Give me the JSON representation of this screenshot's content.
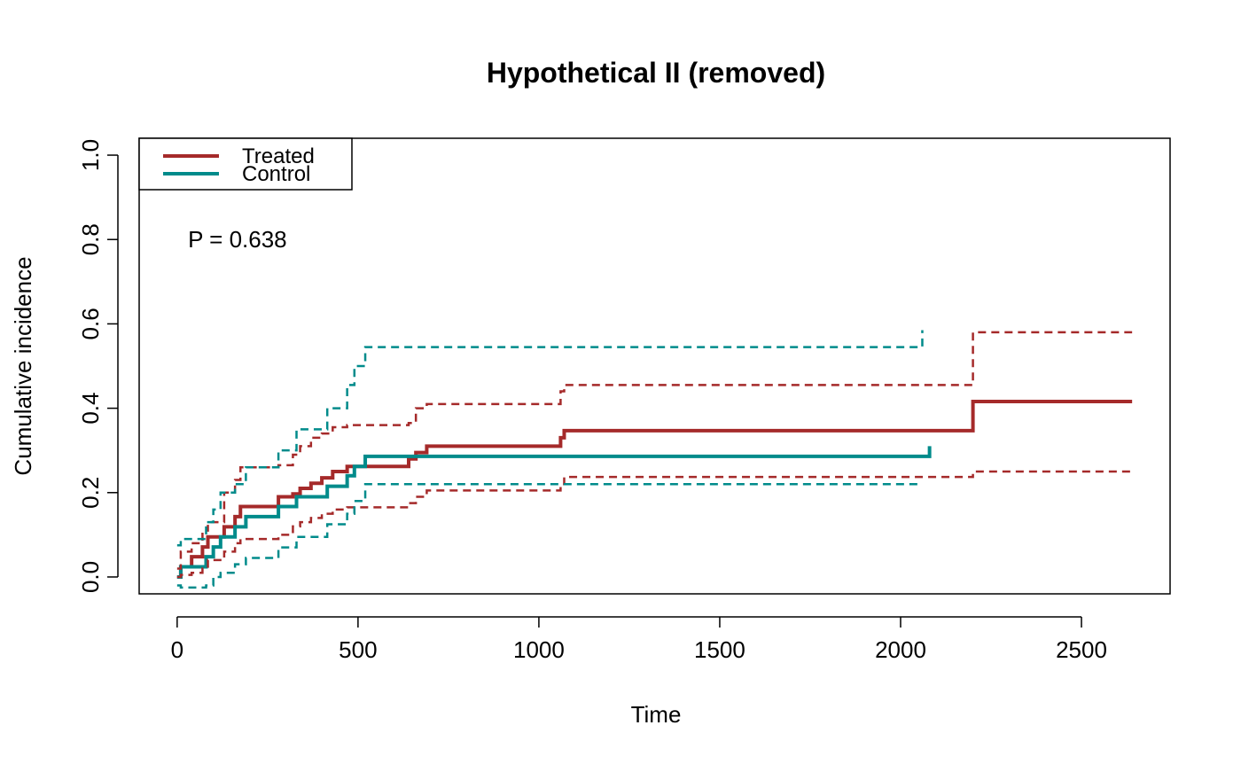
{
  "chart_data": {
    "type": "line",
    "title": "Hypothetical II (removed)",
    "xlabel": "Time",
    "ylabel": "Cumulative incidence",
    "xlim": [
      -105,
      2745
    ],
    "ylim": [
      -0.04,
      1.04
    ],
    "xticks": [
      0,
      500,
      1000,
      1500,
      2000,
      2500
    ],
    "xtick_labels": [
      "0",
      "500",
      "1000",
      "1500",
      "2000",
      "2500"
    ],
    "yticks": [
      0.0,
      0.2,
      0.4,
      0.6,
      0.8,
      1.0
    ],
    "ytick_labels": [
      "0.0",
      "0.2",
      "0.4",
      "0.6",
      "0.8",
      "1.0"
    ],
    "legend": {
      "position": "top-left",
      "entries": [
        {
          "label": "Treated",
          "color": "#A52A2A"
        },
        {
          "label": "Control",
          "color": "#008B8B"
        }
      ]
    },
    "annotation": {
      "text": "P = 0.638",
      "x": 30,
      "y": 0.8
    },
    "series": [
      {
        "name": "Treated",
        "color": "#A52A2A",
        "style": "solid",
        "role": "estimate",
        "x": [
          0,
          10,
          40,
          70,
          85,
          130,
          160,
          175,
          280,
          320,
          340,
          370,
          400,
          430,
          470,
          640,
          660,
          690,
          1060,
          1070,
          2200,
          2640
        ],
        "y": [
          0,
          0.024,
          0.048,
          0.071,
          0.095,
          0.119,
          0.143,
          0.167,
          0.19,
          0.197,
          0.21,
          0.222,
          0.235,
          0.25,
          0.262,
          0.28,
          0.295,
          0.31,
          0.33,
          0.347,
          0.416,
          0.416
        ]
      },
      {
        "name": "Control",
        "color": "#008B8B",
        "style": "solid",
        "role": "estimate",
        "x": [
          0,
          10,
          80,
          100,
          120,
          160,
          190,
          280,
          330,
          415,
          470,
          490,
          520,
          2080
        ],
        "y": [
          0,
          0.024,
          0.048,
          0.071,
          0.095,
          0.119,
          0.143,
          0.167,
          0.19,
          0.215,
          0.24,
          0.262,
          0.286,
          0.31
        ]
      },
      {
        "name": "Treated upper CI",
        "color": "#A52A2A",
        "style": "dashed",
        "role": "ci",
        "x": [
          0,
          10,
          40,
          70,
          85,
          130,
          160,
          175,
          280,
          320,
          340,
          370,
          400,
          430,
          470,
          640,
          660,
          690,
          1060,
          1070,
          2200,
          2640
        ],
        "y": [
          0.02,
          0.06,
          0.08,
          0.11,
          0.13,
          0.2,
          0.23,
          0.26,
          0.265,
          0.29,
          0.31,
          0.33,
          0.34,
          0.355,
          0.36,
          0.365,
          0.4,
          0.41,
          0.44,
          0.455,
          0.58,
          0.58
        ]
      },
      {
        "name": "Treated lower CI",
        "color": "#A52A2A",
        "style": "dashed",
        "role": "ci",
        "x": [
          0,
          10,
          40,
          70,
          85,
          130,
          160,
          175,
          280,
          320,
          340,
          370,
          400,
          430,
          470,
          640,
          660,
          690,
          1060,
          1070,
          2200,
          2640
        ],
        "y": [
          0,
          0.005,
          0.01,
          0.02,
          0.04,
          0.06,
          0.08,
          0.09,
          0.1,
          0.12,
          0.13,
          0.14,
          0.15,
          0.16,
          0.165,
          0.175,
          0.19,
          0.205,
          0.22,
          0.237,
          0.25,
          0.25
        ]
      },
      {
        "name": "Control upper CI",
        "color": "#008B8B",
        "style": "dashed",
        "role": "ci",
        "x": [
          0,
          10,
          80,
          100,
          120,
          160,
          190,
          280,
          330,
          415,
          470,
          490,
          520,
          2060
        ],
        "y": [
          0.075,
          0.09,
          0.13,
          0.16,
          0.2,
          0.22,
          0.26,
          0.3,
          0.35,
          0.4,
          0.455,
          0.5,
          0.545,
          0.585
        ]
      },
      {
        "name": "Control lower CI",
        "color": "#008B8B",
        "style": "dashed",
        "role": "ci",
        "x": [
          0,
          10,
          80,
          100,
          120,
          160,
          190,
          280,
          330,
          415,
          470,
          490,
          520,
          2060
        ],
        "y": [
          -0.02,
          -0.025,
          -0.02,
          0,
          0.01,
          0.03,
          0.045,
          0.07,
          0.095,
          0.125,
          0.15,
          0.18,
          0.22,
          0.22
        ]
      }
    ]
  }
}
